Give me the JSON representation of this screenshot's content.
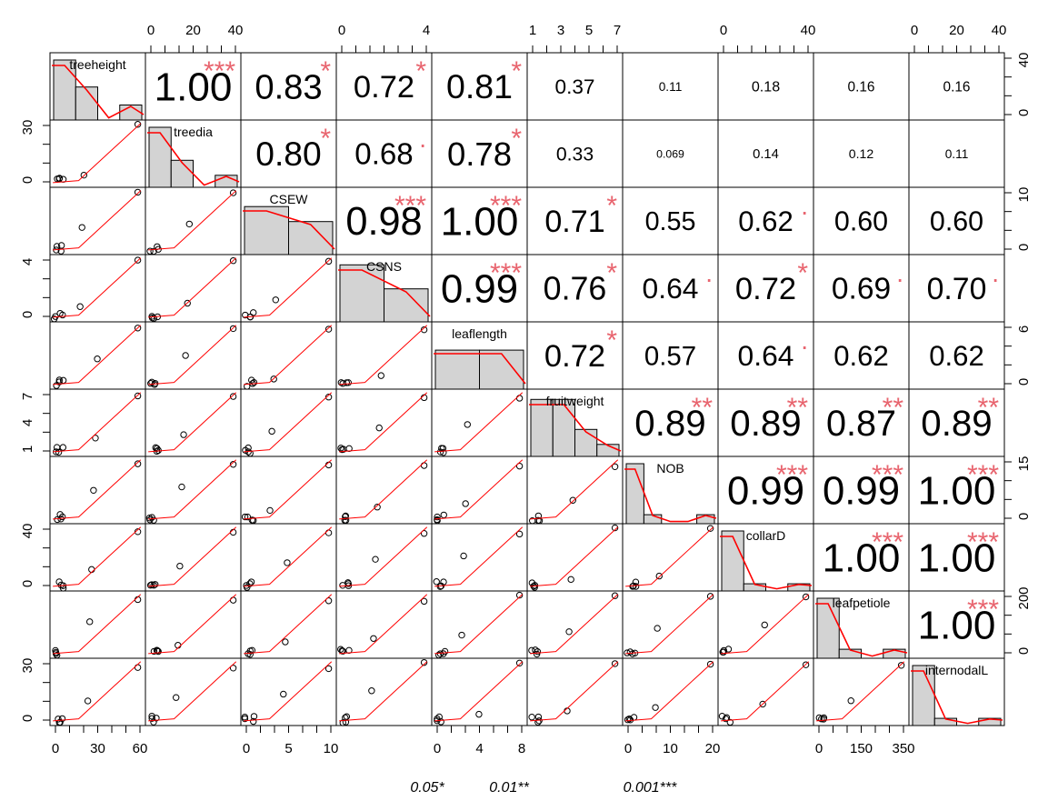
{
  "chart_data": {
    "type": "scatter-matrix",
    "variables": [
      "treeheight",
      "treedia",
      "CSEW",
      "CSNS",
      "leaflength",
      "fruitweight",
      "NOB",
      "collarD",
      "leafpetiole",
      "internodalL"
    ],
    "correlations": [
      {
        "row": 0,
        "col": 1,
        "r": "1.00",
        "stars": "***"
      },
      {
        "row": 0,
        "col": 2,
        "r": "0.83",
        "stars": "*"
      },
      {
        "row": 0,
        "col": 3,
        "r": "0.72",
        "stars": "*"
      },
      {
        "row": 0,
        "col": 4,
        "r": "0.81",
        "stars": "*"
      },
      {
        "row": 0,
        "col": 5,
        "r": "0.37",
        "stars": ""
      },
      {
        "row": 0,
        "col": 6,
        "r": "0.11",
        "stars": ""
      },
      {
        "row": 0,
        "col": 7,
        "r": "0.18",
        "stars": ""
      },
      {
        "row": 0,
        "col": 8,
        "r": "0.16",
        "stars": ""
      },
      {
        "row": 0,
        "col": 9,
        "r": "0.16",
        "stars": ""
      },
      {
        "row": 1,
        "col": 2,
        "r": "0.80",
        "stars": "*"
      },
      {
        "row": 1,
        "col": 3,
        "r": "0.68",
        "stars": "."
      },
      {
        "row": 1,
        "col": 4,
        "r": "0.78",
        "stars": "*"
      },
      {
        "row": 1,
        "col": 5,
        "r": "0.33",
        "stars": ""
      },
      {
        "row": 1,
        "col": 6,
        "r": "0.069",
        "stars": ""
      },
      {
        "row": 1,
        "col": 7,
        "r": "0.14",
        "stars": ""
      },
      {
        "row": 1,
        "col": 8,
        "r": "0.12",
        "stars": ""
      },
      {
        "row": 1,
        "col": 9,
        "r": "0.11",
        "stars": ""
      },
      {
        "row": 2,
        "col": 3,
        "r": "0.98",
        "stars": "***"
      },
      {
        "row": 2,
        "col": 4,
        "r": "1.00",
        "stars": "***"
      },
      {
        "row": 2,
        "col": 5,
        "r": "0.71",
        "stars": "*"
      },
      {
        "row": 2,
        "col": 6,
        "r": "0.55",
        "stars": ""
      },
      {
        "row": 2,
        "col": 7,
        "r": "0.62",
        "stars": "."
      },
      {
        "row": 2,
        "col": 8,
        "r": "0.60",
        "stars": ""
      },
      {
        "row": 2,
        "col": 9,
        "r": "0.60",
        "stars": ""
      },
      {
        "row": 3,
        "col": 4,
        "r": "0.99",
        "stars": "***"
      },
      {
        "row": 3,
        "col": 5,
        "r": "0.76",
        "stars": "*"
      },
      {
        "row": 3,
        "col": 6,
        "r": "0.64",
        "stars": "."
      },
      {
        "row": 3,
        "col": 7,
        "r": "0.72",
        "stars": "*"
      },
      {
        "row": 3,
        "col": 8,
        "r": "0.69",
        "stars": "."
      },
      {
        "row": 3,
        "col": 9,
        "r": "0.70",
        "stars": "."
      },
      {
        "row": 4,
        "col": 5,
        "r": "0.72",
        "stars": "*"
      },
      {
        "row": 4,
        "col": 6,
        "r": "0.57",
        "stars": ""
      },
      {
        "row": 4,
        "col": 7,
        "r": "0.64",
        "stars": "."
      },
      {
        "row": 4,
        "col": 8,
        "r": "0.62",
        "stars": ""
      },
      {
        "row": 4,
        "col": 9,
        "r": "0.62",
        "stars": ""
      },
      {
        "row": 5,
        "col": 6,
        "r": "0.89",
        "stars": "**"
      },
      {
        "row": 5,
        "col": 7,
        "r": "0.89",
        "stars": "**"
      },
      {
        "row": 5,
        "col": 8,
        "r": "0.87",
        "stars": "**"
      },
      {
        "row": 5,
        "col": 9,
        "r": "0.89",
        "stars": "**"
      },
      {
        "row": 6,
        "col": 7,
        "r": "0.99",
        "stars": "***"
      },
      {
        "row": 6,
        "col": 8,
        "r": "0.99",
        "stars": "***"
      },
      {
        "row": 6,
        "col": 9,
        "r": "1.00",
        "stars": "***"
      },
      {
        "row": 7,
        "col": 8,
        "r": "1.00",
        "stars": "***"
      },
      {
        "row": 7,
        "col": 9,
        "r": "1.00",
        "stars": "***"
      },
      {
        "row": 8,
        "col": 9,
        "r": "1.00",
        "stars": "***"
      }
    ],
    "axes": {
      "bottom": [
        {
          "col": 0,
          "ticks": [
            "0",
            "30",
            "60"
          ]
        },
        {
          "col": 2,
          "ticks": [
            "0",
            "5",
            "10"
          ]
        },
        {
          "col": 4,
          "ticks": [
            "0",
            "4",
            "8"
          ]
        },
        {
          "col": 6,
          "ticks": [
            "0",
            "10",
            "20"
          ]
        },
        {
          "col": 8,
          "ticks": [
            "0",
            "150",
            "350"
          ]
        }
      ],
      "top": [
        {
          "col": 1,
          "ticks": [
            "0",
            "20",
            "40"
          ]
        },
        {
          "col": 3,
          "ticks": [
            "0",
            "4"
          ]
        },
        {
          "col": 5,
          "ticks": [
            "1",
            "3",
            "5",
            "7"
          ]
        },
        {
          "col": 7,
          "ticks": [
            "0",
            "40"
          ]
        },
        {
          "col": 9,
          "ticks": [
            "0",
            "20",
            "40"
          ]
        }
      ],
      "left": [
        {
          "row": 1,
          "ticks": [
            "0",
            "30"
          ]
        },
        {
          "row": 3,
          "ticks": [
            "0",
            "4"
          ]
        },
        {
          "row": 5,
          "ticks": [
            "1",
            "4",
            "7"
          ]
        },
        {
          "row": 7,
          "ticks": [
            "0",
            "40"
          ]
        },
        {
          "row": 9,
          "ticks": [
            "0",
            "30"
          ]
        }
      ],
      "right": [
        {
          "row": 0,
          "ticks": [
            "0",
            "40"
          ]
        },
        {
          "row": 2,
          "ticks": [
            "0",
            "10"
          ]
        },
        {
          "row": 4,
          "ticks": [
            "0",
            "6"
          ]
        },
        {
          "row": 6,
          "ticks": [
            "0",
            "15"
          ]
        },
        {
          "row": 8,
          "ticks": [
            "0",
            "200"
          ]
        }
      ]
    },
    "legend": [
      "0.05*",
      "0.01**",
      "0.001***"
    ],
    "colors": {
      "fit_line": "#ff0000",
      "stars": "#e8646e",
      "hist_fill": "#d3d3d3"
    }
  }
}
